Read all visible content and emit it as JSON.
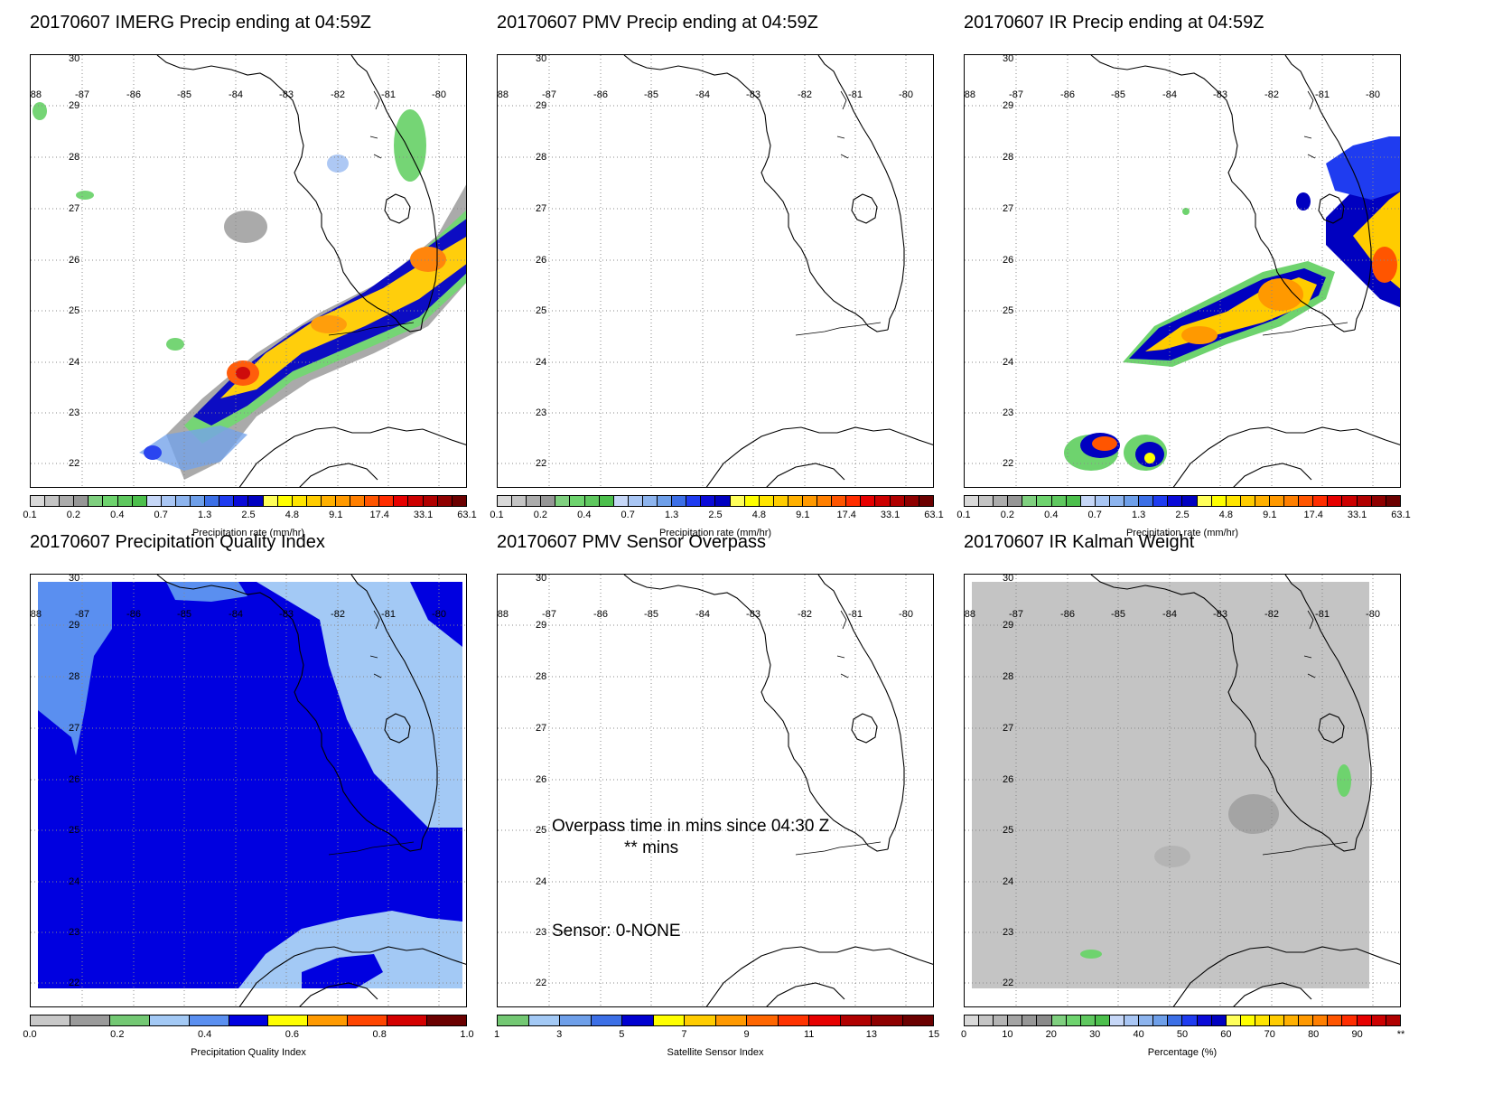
{
  "panels": [
    {
      "id": "imerg",
      "title": "20170607 IMERG Precip ending at 04:59Z",
      "cbar": "precip",
      "colorbar_label": "Precipitation rate (mm/hr)"
    },
    {
      "id": "pmv",
      "title": "20170607 PMV Precip ending at 04:59Z",
      "cbar": "precip",
      "colorbar_label": "Precipitation rate (mm/hr)"
    },
    {
      "id": "ir",
      "title": "20170607 IR Precip ending at 04:59Z",
      "cbar": "precip",
      "colorbar_label": "Precipitation rate (mm/hr)"
    },
    {
      "id": "pqi",
      "title": "20170607 Precipitation Quality Index",
      "cbar": "pqi",
      "colorbar_label": "Precipitation Quality Index"
    },
    {
      "id": "sensor",
      "title": "20170607 PMV Sensor Overpass",
      "cbar": "sensor",
      "colorbar_label": "Satellite Sensor Index",
      "overpass_line1": "Overpass time in mins since 04:30 Z",
      "overpass_line2": "** mins",
      "sensor_text": "Sensor:   0-NONE"
    },
    {
      "id": "kalman",
      "title": "20170607 IR Kalman Weight",
      "cbar": "pct",
      "colorbar_label": "Percentage (%)"
    }
  ],
  "axes": {
    "lon_labels": [
      "-88",
      "-87",
      "-86",
      "-85",
      "-84",
      "-83",
      "-82",
      "-81",
      "-80"
    ],
    "lat_labels": [
      "30",
      "29",
      "28",
      "27",
      "26",
      "25",
      "24",
      "23",
      "22"
    ]
  },
  "colorbars": {
    "precip": {
      "colors": [
        "#d9d9d9",
        "#c4c4c4",
        "#acacac",
        "#969696",
        "#7fcf7f",
        "#6ed36e",
        "#5fc85f",
        "#4cbf4c",
        "#c6d7f7",
        "#a9c6f4",
        "#8db4ee",
        "#6e9fe9",
        "#3c6fe6",
        "#1f3cf0",
        "#0a0ad8",
        "#0000c0",
        "#ffff5a",
        "#ffff00",
        "#ffe500",
        "#ffcc00",
        "#ffb000",
        "#ff9900",
        "#ff7f00",
        "#ff5500",
        "#ff2d00",
        "#e60000",
        "#cc0000",
        "#b00000",
        "#8e0000",
        "#6b0000"
      ],
      "tick_labels": [
        "0.1",
        "0.2",
        "0.4",
        "0.7",
        "1.3",
        "2.5",
        "4.8",
        "9.1",
        "17.4",
        "33.1",
        "63.1"
      ]
    },
    "pqi": {
      "colors": [
        "#c8c8c8",
        "#9a9a9a",
        "#73c873",
        "#a3c9f5",
        "#5a8ff0",
        "#0000e0",
        "#ffff00",
        "#ff9a00",
        "#ff4500",
        "#d40000",
        "#6b0000"
      ],
      "tick_labels": [
        "0.0",
        "0.2",
        "0.4",
        "0.6",
        "0.8",
        "1.0"
      ]
    },
    "sensor": {
      "colors": [
        "#73c873",
        "#a3c9f5",
        "#6e9fe9",
        "#3c6fe6",
        "#0000d0",
        "#ffff00",
        "#ffcc00",
        "#ff9900",
        "#ff6600",
        "#ff3300",
        "#e60000",
        "#b00000",
        "#8e0000",
        "#6b0000"
      ],
      "tick_labels": [
        "1",
        "3",
        "5",
        "7",
        "9",
        "11",
        "13",
        "15"
      ]
    },
    "pct": {
      "colors": [
        "#d9d9d9",
        "#c4c4c4",
        "#b4b4b4",
        "#a4a4a4",
        "#969696",
        "#8a8a8a",
        "#7fcf7f",
        "#6ed36e",
        "#5fc85f",
        "#4cbf4c",
        "#c6d7f7",
        "#a9c6f4",
        "#8db4ee",
        "#6e9fe9",
        "#3c6fe6",
        "#1f3cf0",
        "#0a0ad8",
        "#0000c0",
        "#ffff5a",
        "#ffff00",
        "#ffe500",
        "#ffcc00",
        "#ffb000",
        "#ff9900",
        "#ff7f00",
        "#ff5500",
        "#ff2d00",
        "#e60000",
        "#cc0000",
        "#b00000"
      ],
      "tick_labels": [
        "0",
        "10",
        "20",
        "30",
        "40",
        "50",
        "60",
        "70",
        "80",
        "90",
        "**"
      ]
    }
  }
}
